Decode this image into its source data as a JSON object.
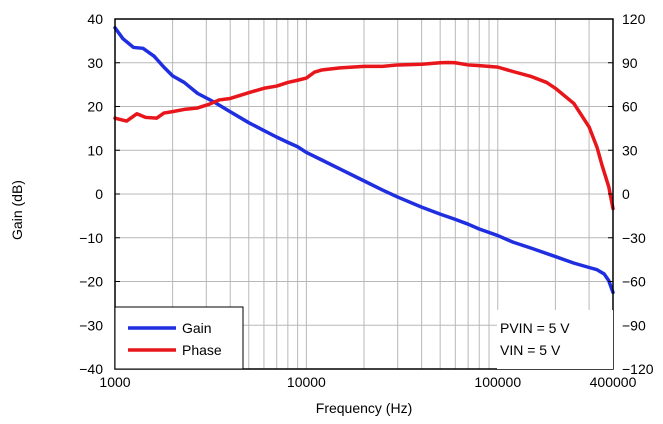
{
  "chart_data": {
    "type": "line",
    "xlabel": "Frequency (Hz)",
    "ylabel": "Gain (dB)",
    "x_scale": "log",
    "xlim": [
      1000,
      400000
    ],
    "ylim": [
      -40,
      40
    ],
    "y2lim": [
      -120,
      120
    ],
    "x_ticks": [
      1000,
      10000,
      100000,
      400000
    ],
    "x_tick_labels": [
      "1000",
      "10000",
      "100000",
      "400000"
    ],
    "y_ticks": [
      40,
      30,
      20,
      10,
      0,
      -10,
      -20,
      -30,
      -40
    ],
    "y_tick_labels": [
      "40",
      "30",
      "20",
      "10",
      "0",
      "−10",
      "−20",
      "−30",
      "−40"
    ],
    "y2_ticks": [
      120,
      90,
      60,
      30,
      0,
      -30,
      -60,
      -90,
      -120
    ],
    "y2_tick_labels": [
      "120",
      "90",
      "60",
      "30",
      "0",
      "−30",
      "−60",
      "−90",
      "−120"
    ],
    "grid": true,
    "legend_position": "bottom-left",
    "annotation": [
      "PVIN = 5 V",
      "VIN = 5 V"
    ],
    "series": [
      {
        "name": "Gain",
        "color": "#1f2fe0",
        "axis": "left",
        "x": [
          1000,
          1100,
          1250,
          1400,
          1600,
          1800,
          2000,
          2300,
          2700,
          3300,
          4000,
          5000,
          6000,
          7000,
          8000,
          9000,
          10000,
          12000,
          15000,
          20000,
          25000,
          30000,
          40000,
          50000,
          60000,
          70000,
          80000,
          100000,
          120000,
          150000,
          200000,
          250000,
          300000,
          330000,
          360000,
          380000,
          400000
        ],
        "y": [
          38,
          35.5,
          33.5,
          33.3,
          31.5,
          29,
          27,
          25.5,
          23,
          21,
          18.8,
          16.3,
          14.5,
          13,
          11.8,
          10.8,
          9.5,
          7.8,
          5.7,
          3.0,
          0.9,
          -0.7,
          -3.0,
          -4.6,
          -5.8,
          -6.9,
          -8.0,
          -9.5,
          -11.0,
          -12.4,
          -14.3,
          -15.8,
          -16.8,
          -17.3,
          -18.3,
          -19.8,
          -22.5
        ]
      },
      {
        "name": "Phase",
        "color": "#e8161b",
        "axis": "right",
        "x": [
          1000,
          1150,
          1300,
          1450,
          1650,
          1800,
          2000,
          2300,
          2700,
          3100,
          3500,
          4000,
          5000,
          6000,
          7000,
          8000,
          9000,
          10000,
          11000,
          12000,
          15000,
          20000,
          25000,
          30000,
          40000,
          50000,
          55000,
          60000,
          70000,
          80000,
          100000,
          120000,
          150000,
          180000,
          200000,
          250000,
          300000,
          330000,
          350000,
          380000,
          400000
        ],
        "y": [
          52,
          50,
          55,
          52.5,
          52,
          55.5,
          56.5,
          58,
          59,
          61.5,
          64.5,
          65.5,
          69.5,
          72.5,
          74,
          76.5,
          78,
          79.5,
          83.5,
          85,
          86.5,
          87.5,
          87.5,
          88.5,
          89,
          90,
          90.2,
          90,
          88.5,
          88,
          87,
          84,
          80.5,
          76.5,
          72.5,
          62,
          46,
          32,
          20,
          5,
          -10
        ]
      }
    ]
  }
}
